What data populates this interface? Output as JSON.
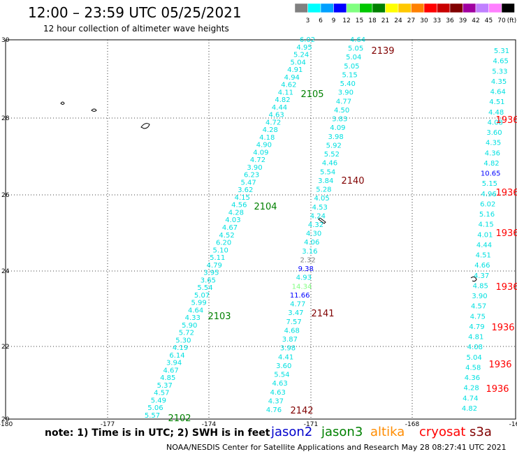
{
  "header": {
    "title": "12:00 – 23:59 UTC 05/25/2021",
    "subtitle": "12 hour collection of altimeter wave heights"
  },
  "legend": {
    "unit": "(ft)",
    "bins": [
      {
        "label": "3",
        "color": "#808080"
      },
      {
        "label": "6",
        "color": "#00ffff"
      },
      {
        "label": "9",
        "color": "#00a0ff"
      },
      {
        "label": "12",
        "color": "#0000ff"
      },
      {
        "label": "15",
        "color": "#80ff80"
      },
      {
        "label": "18",
        "color": "#00c800"
      },
      {
        "label": "21",
        "color": "#008000"
      },
      {
        "label": "24",
        "color": "#ffff00"
      },
      {
        "label": "27",
        "color": "#ffc800"
      },
      {
        "label": "30",
        "color": "#ff8000"
      },
      {
        "label": "33",
        "color": "#ff0000"
      },
      {
        "label": "36",
        "color": "#c80000"
      },
      {
        "label": "39",
        "color": "#800000"
      },
      {
        "label": "42",
        "color": "#a000a0"
      },
      {
        "label": "45",
        "color": "#c080ff"
      },
      {
        "label": "70",
        "color": "#ff80ff"
      },
      {
        "label": "",
        "color": "#000000"
      }
    ]
  },
  "axes": {
    "lat_labels": [
      "30",
      "28",
      "26",
      "24",
      "22",
      "20"
    ],
    "lon_labels": [
      "-180",
      "-177",
      "-174",
      "-171",
      "-168",
      "-16"
    ]
  },
  "tracks": [
    {
      "pass": "2102",
      "pass_color": "#008000",
      "values": [
        "6.02",
        "4.95",
        "5.24",
        "5.04",
        "4.91",
        "4.94",
        "4.62",
        "4.11",
        "4.82",
        "4.44",
        "4.63",
        "4.72",
        "4.28",
        "4.18",
        "4.90",
        "4.09",
        "4.72",
        "3.90",
        "6.23",
        "5.47",
        "3.62",
        "4.15",
        "4.56",
        "4.28",
        "4.03",
        "4.67",
        "4.52",
        "6.20",
        "5.10",
        "5.11",
        "4.79",
        "3.95",
        "3.65",
        "5.54",
        "5.07",
        "5.99",
        "4.64",
        "4.33",
        "5.90",
        "5.72",
        "5.30",
        "4.19",
        "6.14",
        "3.94",
        "4.67",
        "4.85",
        "5.37",
        "4.57",
        "5.49",
        "5.06",
        "5.57"
      ]
    },
    {
      "pass": "2141",
      "pass_color": "#800000",
      "values": [
        "4.64",
        "5.05",
        "5.04",
        "5.05",
        "5.15",
        "5.40",
        "3.90",
        "4.77",
        "4.50",
        "3.83",
        "4.09",
        "3.98",
        "5.92",
        "5.52",
        "4.46",
        "5.54",
        "3.84",
        "5.28",
        "4.05",
        "4.53",
        "4.24",
        "4.32",
        "4.30",
        "4.06",
        "3.16",
        "2.32",
        "9.38",
        "4.93",
        "14.34",
        "11.66",
        "4.77",
        "3.47",
        "7.57",
        "4.68",
        "3.87",
        "3.98",
        "4.41",
        "3.60",
        "5.54",
        "4.63",
        "4.63",
        "4.37",
        "4.76"
      ]
    },
    {
      "pass": "1936",
      "pass_color": "#ff0000",
      "values": [
        "5.31",
        "4.65",
        "5.33",
        "4.35",
        "4.64",
        "4.51",
        "4.48",
        "4.08",
        "3.60",
        "4.35",
        "4.36",
        "4.82",
        "10.65",
        "5.15",
        "4.96",
        "6.02",
        "5.16",
        "4.15",
        "4.01",
        "4.44",
        "4.51",
        "4.66",
        "4.37",
        "4.85",
        "3.90",
        "4.57",
        "4.75",
        "4.79",
        "4.81",
        "4.08",
        "5.04",
        "4.58",
        "4.36",
        "4.28",
        "4.74",
        "4.82"
      ]
    }
  ],
  "pass_labels": [
    {
      "id": "2139",
      "color": "#800000"
    },
    {
      "id": "2105",
      "color": "#008000"
    },
    {
      "id": "2140",
      "color": "#800000"
    },
    {
      "id": "2104",
      "color": "#008000"
    },
    {
      "id": "2141",
      "color": "#800000"
    },
    {
      "id": "2103",
      "color": "#008000"
    },
    {
      "id": "2142",
      "color": "#800000"
    },
    {
      "id": "2102",
      "color": "#008000"
    },
    {
      "id": "1936",
      "color": "#ff0000"
    },
    {
      "id": "1936",
      "color": "#ff0000"
    },
    {
      "id": "1936",
      "color": "#ff0000"
    },
    {
      "id": "1936",
      "color": "#ff0000"
    },
    {
      "id": "1936",
      "color": "#ff0000"
    },
    {
      "id": "1936",
      "color": "#ff0000"
    },
    {
      "id": "1936",
      "color": "#ff0000"
    }
  ],
  "footer": {
    "note": "note: 1) Time is in UTC; 2) SWH is in feet",
    "satellites": [
      {
        "name": "jason2",
        "color": "#0000cc"
      },
      {
        "name": "jason3",
        "color": "#008000"
      },
      {
        "name": "altika",
        "color": "#ff8c00"
      },
      {
        "name": "cryosat",
        "color": "#ff0000"
      },
      {
        "name": "s3a",
        "color": "#800000"
      }
    ],
    "credit": "NOAA/NESDIS Center for Satellite Applications and Research    May 28 08:27:41 UTC 2021"
  }
}
